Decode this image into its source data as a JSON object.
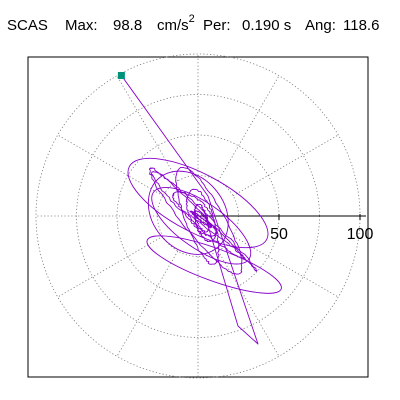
{
  "header": {
    "station": "SCAS",
    "max_label": "Max:",
    "max_value": "98.8",
    "max_unit": "cm/s",
    "max_unit_exp": "2",
    "per_label": "Per:",
    "per_value": "0.190 s",
    "ang_label": "Ang:",
    "ang_value": "118.6"
  },
  "plot": {
    "radial_ticks": [
      {
        "value": 50,
        "label": "50"
      },
      {
        "value": 100,
        "label": "100"
      }
    ],
    "ring_values": [
      25,
      50,
      75,
      100
    ],
    "spoke_angles_deg": [
      0,
      30,
      60,
      90,
      120,
      150,
      180,
      210,
      240,
      270,
      300,
      330
    ],
    "r_max": 100,
    "peak": {
      "magnitude": 98.8,
      "angle_deg": 118.6
    },
    "colors": {
      "trace": "#8800cc",
      "peak_marker": "#00937a",
      "grid": "#777777",
      "axis": "#000000",
      "frame": "#000000"
    }
  }
}
